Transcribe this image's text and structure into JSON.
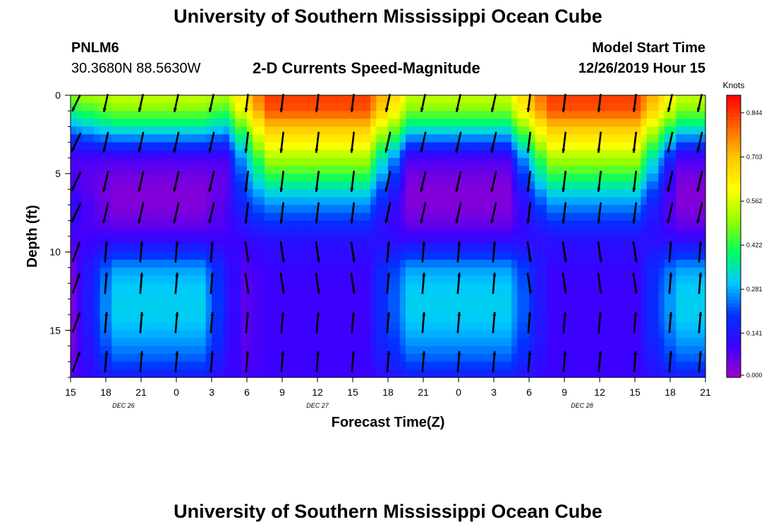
{
  "page": {
    "title_top": "University of Southern Mississippi Ocean Cube",
    "title_bottom": "University of Southern Mississippi Ocean Cube",
    "station_id": "PNLM6",
    "station_coords": "30.3680N 88.5630W",
    "model_start_label": "Model Start Time",
    "model_start_value": "12/26/2019 Hour 15"
  },
  "chart_data": {
    "type": "heatmap",
    "title": "2-D Currents Speed-Magnitude",
    "xlabel": "Forecast Time(Z)",
    "ylabel": "Depth (ft)",
    "x_tick_labels": [
      "15",
      "18",
      "21",
      "0",
      "3",
      "6",
      "9",
      "12",
      "15",
      "18",
      "21",
      "0",
      "3",
      "6",
      "9",
      "12",
      "15",
      "18",
      "21"
    ],
    "date_labels": [
      {
        "text": "DEC 26",
        "at_tick_index": 1.5
      },
      {
        "text": "DEC 27",
        "at_tick_index": 7
      },
      {
        "text": "DEC 28",
        "at_tick_index": 14.5
      }
    ],
    "y_ticks": [
      0,
      5,
      10,
      15
    ],
    "ylim": [
      0,
      18
    ],
    "x_hours_range": [
      0,
      54
    ],
    "colorbar": {
      "unit": "Knots",
      "ticks": [
        "0.000",
        "0.141",
        "0.281",
        "0.422",
        "0.562",
        "0.703",
        "0.844"
      ],
      "tick_values": [
        0.0,
        0.141,
        0.281,
        0.422,
        0.562,
        0.703,
        0.844
      ],
      "range": [
        0,
        0.9
      ],
      "colors": [
        "#a000c8",
        "#3c00ff",
        "#0032ff",
        "#00c8ff",
        "#00ff64",
        "#96ff00",
        "#ffff00",
        "#ffc800",
        "#ff6400",
        "#ff0000"
      ]
    },
    "speed_profiles_knots": {
      "depth_ft": [
        0,
        1,
        2,
        3,
        4,
        5,
        6,
        7,
        8,
        9,
        10,
        11,
        12,
        13,
        14,
        15,
        16,
        17,
        18
      ],
      "regimes": {
        "strong_ebb": [
          0.84,
          0.82,
          0.7,
          0.62,
          0.52,
          0.44,
          0.34,
          0.26,
          0.2,
          0.14,
          0.12,
          0.11,
          0.1,
          0.1,
          0.1,
          0.1,
          0.1,
          0.1,
          0.1
        ],
        "weak_ebb": [
          0.55,
          0.48,
          0.36,
          0.22,
          0.09,
          0.05,
          0.03,
          0.03,
          0.05,
          0.1,
          0.18,
          0.27,
          0.3,
          0.31,
          0.31,
          0.29,
          0.26,
          0.22,
          0.16
        ],
        "transition": [
          0.5,
          0.4,
          0.28,
          0.16,
          0.09,
          0.08,
          0.1,
          0.12,
          0.11,
          0.09,
          0.07,
          0.05,
          0.04,
          0.04,
          0.04,
          0.04,
          0.05,
          0.06,
          0.08
        ]
      },
      "time_regimes_by_hour": [
        {
          "hour_range": [
            0,
            2
          ],
          "regime": "transition"
        },
        {
          "hour_range": [
            2,
            13
          ],
          "regime": "weak_ebb"
        },
        {
          "hour_range": [
            13,
            15
          ],
          "regime": "transition"
        },
        {
          "hour_range": [
            15,
            27
          ],
          "regime": "strong_ebb"
        },
        {
          "hour_range": [
            27,
            39
          ],
          "regime": "weak_ebb"
        },
        {
          "hour_range": [
            39,
            50
          ],
          "regime": "strong_ebb"
        },
        {
          "hour_range": [
            50,
            54
          ],
          "regime": "weak_ebb"
        }
      ]
    },
    "vectors": {
      "hours": [
        0,
        3,
        6,
        9,
        12,
        15,
        18,
        21,
        24,
        27,
        30,
        33,
        36,
        39,
        42,
        45,
        48,
        51,
        54
      ],
      "depths_ft": [
        0.5,
        3,
        5.5,
        7.5,
        10,
        12,
        14.5,
        17
      ]
    }
  }
}
